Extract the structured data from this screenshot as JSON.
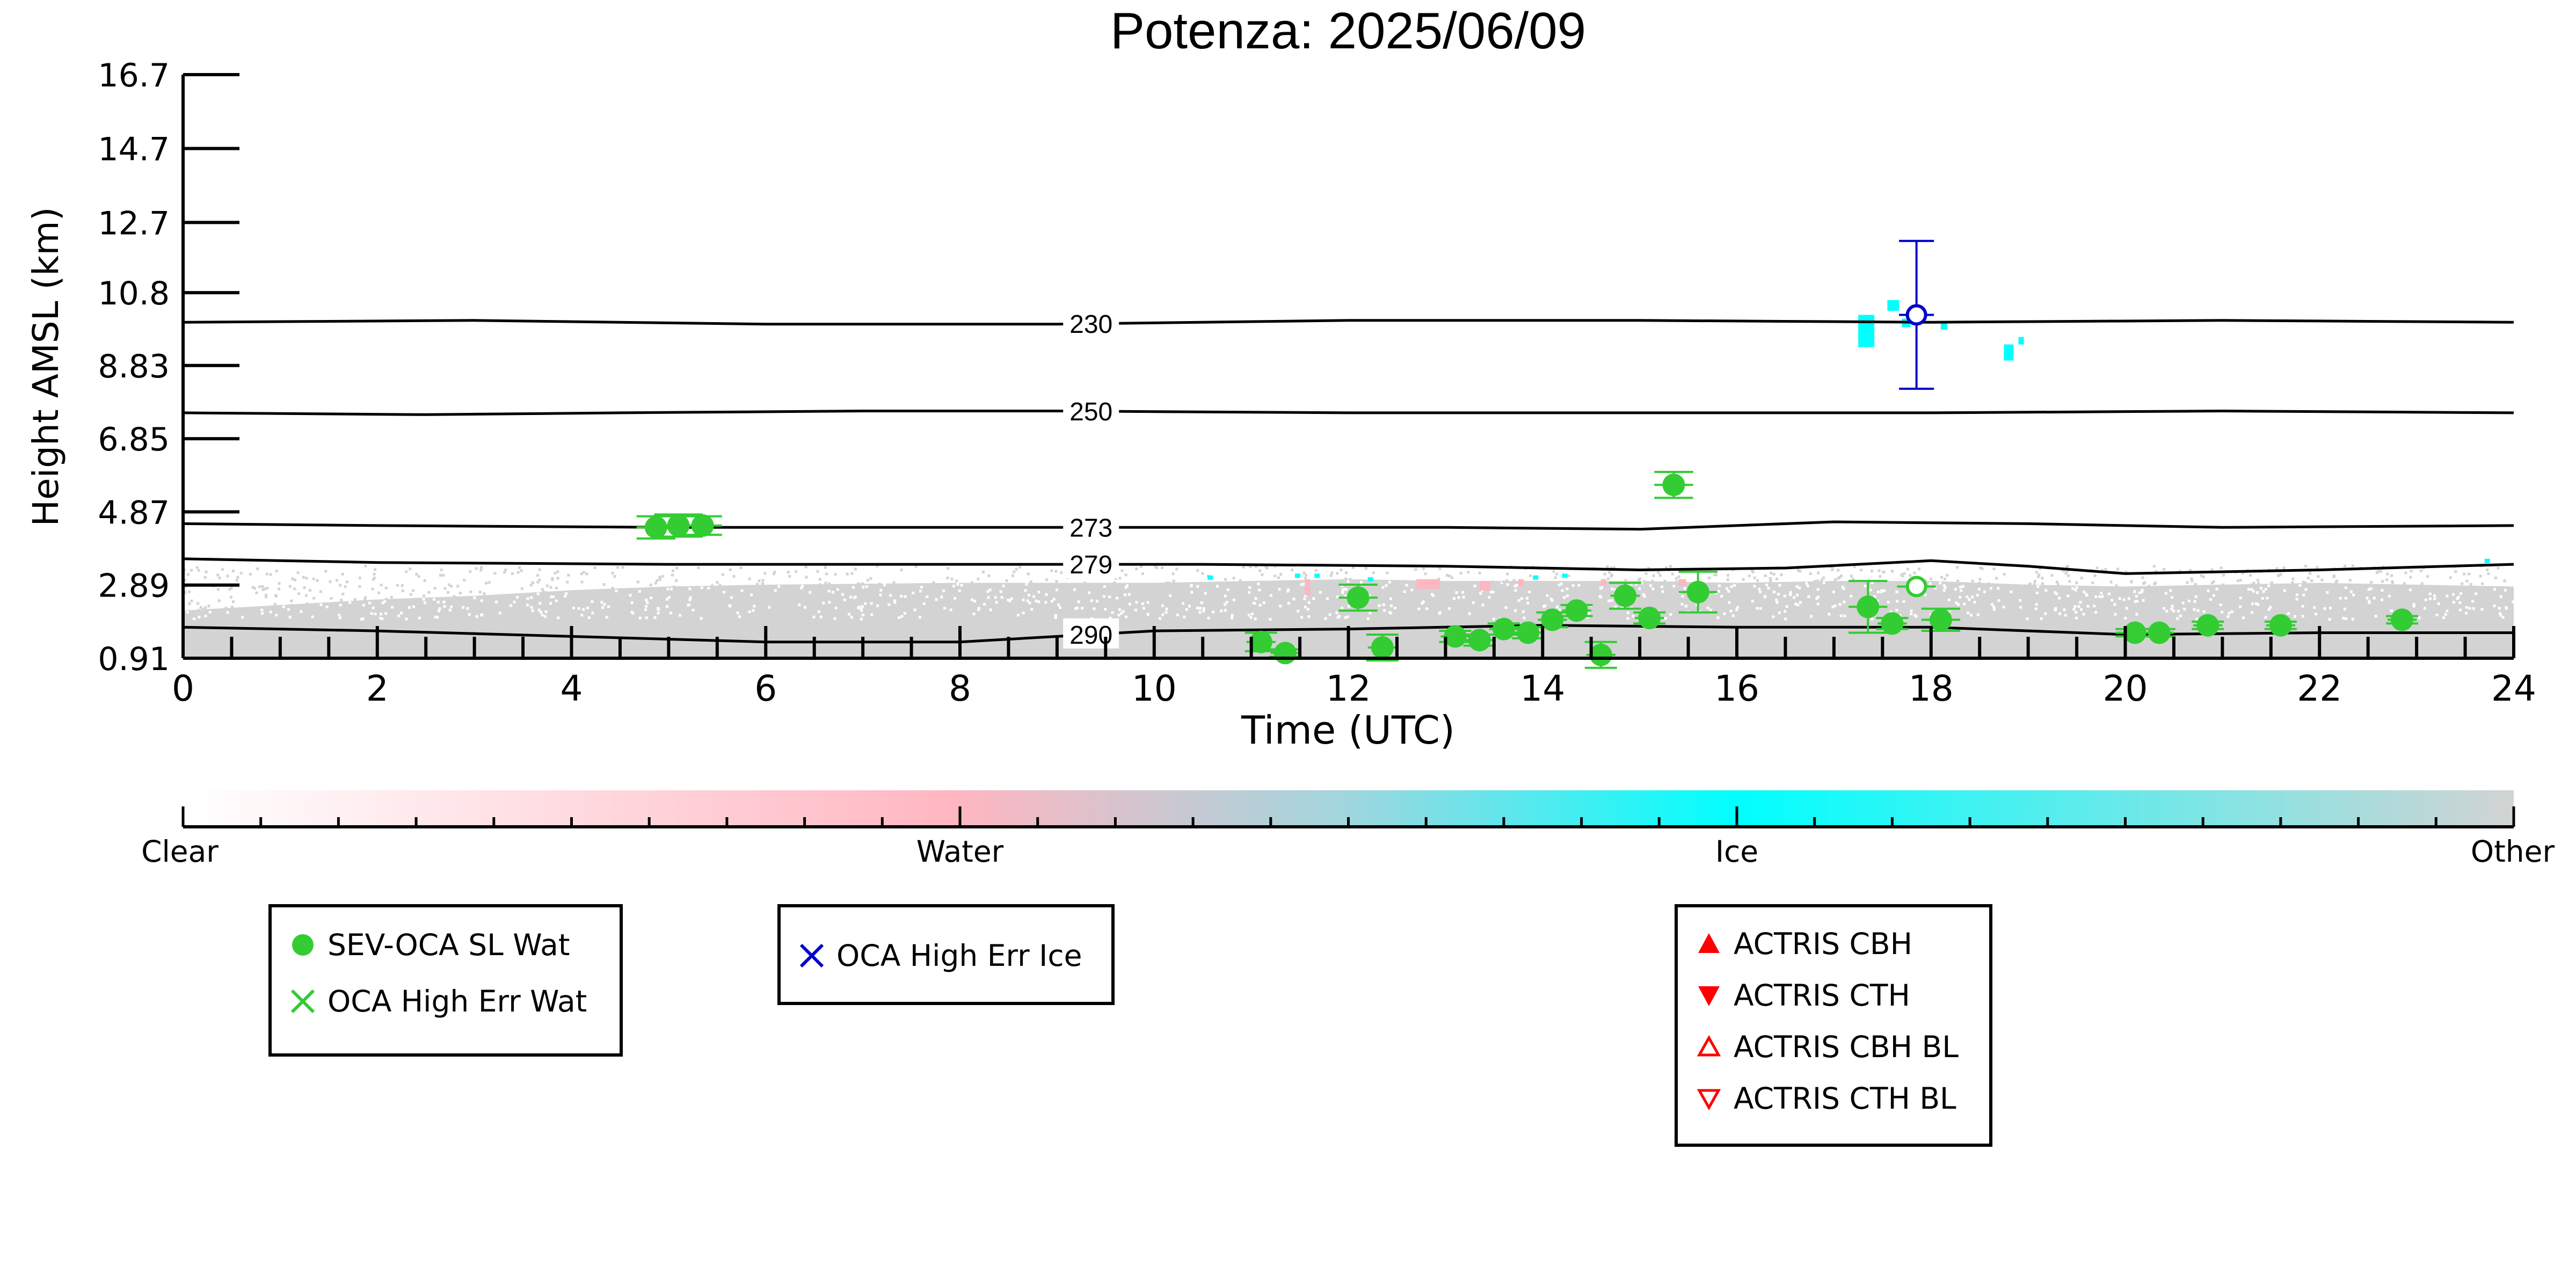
{
  "chart_data": {
    "type": "scatter",
    "title": "Potenza: 2025/06/09",
    "xlabel": "Time (UTC)",
    "ylabel": "Height AMSL (km)",
    "xlim": [
      0,
      24
    ],
    "ylim": [
      0.91,
      16.7
    ],
    "x_ticks": [
      "0",
      "2",
      "4",
      "6",
      "8",
      "10",
      "12",
      "14",
      "16",
      "18",
      "20",
      "22",
      "24"
    ],
    "y_ticks": [
      "0.91",
      "2.89",
      "4.87",
      "6.85",
      "8.83",
      "10.8",
      "12.7",
      "14.7",
      "16.7"
    ],
    "isotherms": [
      {
        "label": "230",
        "points": [
          [
            0,
            10.0
          ],
          [
            3,
            10.05
          ],
          [
            6,
            9.95
          ],
          [
            9,
            9.95
          ],
          [
            12,
            10.05
          ],
          [
            15,
            10.05
          ],
          [
            18,
            10.0
          ],
          [
            21,
            10.05
          ],
          [
            24,
            10.0
          ]
        ]
      },
      {
        "label": "250",
        "points": [
          [
            0,
            7.55
          ],
          [
            2.5,
            7.5
          ],
          [
            4.5,
            7.55
          ],
          [
            7,
            7.6
          ],
          [
            9,
            7.6
          ],
          [
            12,
            7.55
          ],
          [
            15,
            7.55
          ],
          [
            18,
            7.55
          ],
          [
            21,
            7.6
          ],
          [
            24,
            7.55
          ]
        ]
      },
      {
        "label": "273",
        "points": [
          [
            0,
            4.55
          ],
          [
            2,
            4.5
          ],
          [
            5,
            4.45
          ],
          [
            8,
            4.45
          ],
          [
            10.5,
            4.45
          ],
          [
            13,
            4.45
          ],
          [
            15,
            4.4
          ],
          [
            17,
            4.6
          ],
          [
            19,
            4.55
          ],
          [
            21,
            4.45
          ],
          [
            24,
            4.5
          ]
        ]
      },
      {
        "label": "279",
        "points": [
          [
            0,
            3.6
          ],
          [
            2,
            3.5
          ],
          [
            5,
            3.45
          ],
          [
            8,
            3.45
          ],
          [
            10.5,
            3.45
          ],
          [
            13,
            3.4
          ],
          [
            15,
            3.3
          ],
          [
            16.5,
            3.35
          ],
          [
            18,
            3.55
          ],
          [
            19,
            3.4
          ],
          [
            20,
            3.2
          ],
          [
            22,
            3.3
          ],
          [
            24,
            3.45
          ]
        ]
      },
      {
        "label": "290",
        "points": [
          [
            0,
            1.75
          ],
          [
            2,
            1.65
          ],
          [
            4,
            1.5
          ],
          [
            6,
            1.35
          ],
          [
            8,
            1.35
          ],
          [
            10,
            1.65
          ],
          [
            12,
            1.7
          ],
          [
            14,
            1.8
          ],
          [
            16,
            1.75
          ],
          [
            18,
            1.75
          ],
          [
            20,
            1.55
          ],
          [
            22,
            1.6
          ],
          [
            24,
            1.6
          ]
        ]
      }
    ],
    "series": [
      {
        "name": "SEV-OCA SL Wat",
        "marker": "filled-circle",
        "color": "#33cc33",
        "points": [
          {
            "x": 4.87,
            "y": 4.45,
            "xerr": 0.2,
            "yerr": 0.3
          },
          {
            "x": 5.1,
            "y": 4.5,
            "xerr": 0.25,
            "yerr": 0.3
          },
          {
            "x": 5.35,
            "y": 4.5,
            "xerr": 0.2,
            "yerr": 0.25
          },
          {
            "x": 11.1,
            "y": 1.35,
            "xerr": 0.15,
            "yerr": 0.25
          },
          {
            "x": 11.35,
            "y": 1.05,
            "xerr": 0.15,
            "yerr": 0.1
          },
          {
            "x": 12.1,
            "y": 2.55,
            "xerr": 0.2,
            "yerr": 0.35
          },
          {
            "x": 12.35,
            "y": 1.2,
            "xerr": 0.15,
            "yerr": 0.35
          },
          {
            "x": 13.1,
            "y": 1.5,
            "xerr": 0.15,
            "yerr": 0.15
          },
          {
            "x": 13.35,
            "y": 1.4,
            "xerr": 0.15,
            "yerr": 0.15
          },
          {
            "x": 13.6,
            "y": 1.7,
            "xerr": 0.15,
            "yerr": 0.15
          },
          {
            "x": 13.85,
            "y": 1.6,
            "xerr": 0.15,
            "yerr": 0.15
          },
          {
            "x": 14.1,
            "y": 1.95,
            "xerr": 0.15,
            "yerr": 0.2
          },
          {
            "x": 14.35,
            "y": 2.2,
            "xerr": 0.15,
            "yerr": 0.15
          },
          {
            "x": 14.6,
            "y": 1.0,
            "xerr": 0.15,
            "yerr": 0.35
          },
          {
            "x": 14.85,
            "y": 2.6,
            "xerr": 0.15,
            "yerr": 0.35
          },
          {
            "x": 15.1,
            "y": 2.0,
            "xerr": 0.15,
            "yerr": 0.15
          },
          {
            "x": 15.35,
            "y": 5.6,
            "xerr": 0.2,
            "yerr": 0.35
          },
          {
            "x": 15.6,
            "y": 2.7,
            "xerr": 0.2,
            "yerr": 0.55
          },
          {
            "x": 17.35,
            "y": 2.3,
            "xerr": 0.2,
            "yerr": 0.7
          },
          {
            "x": 17.6,
            "y": 1.85,
            "xerr": 0.15,
            "yerr": 0.15
          },
          {
            "x": 18.1,
            "y": 1.95,
            "xerr": 0.2,
            "yerr": 0.3
          },
          {
            "x": 20.1,
            "y": 1.6,
            "xerr": 0.2,
            "yerr": 0.1
          },
          {
            "x": 20.35,
            "y": 1.6,
            "xerr": 0.15,
            "yerr": 0.1
          },
          {
            "x": 20.85,
            "y": 1.8,
            "xerr": 0.15,
            "yerr": 0.1
          },
          {
            "x": 21.6,
            "y": 1.8,
            "xerr": 0.15,
            "yerr": 0.1
          },
          {
            "x": 22.85,
            "y": 1.95,
            "xerr": 0.15,
            "yerr": 0.1
          }
        ]
      },
      {
        "name": "SEV-OCA SL Wat (open)",
        "marker": "open-circle",
        "color": "#33cc33",
        "points": [
          {
            "x": 17.85,
            "y": 2.85,
            "xerr": 0.2,
            "yerr": 0.0
          }
        ]
      },
      {
        "name": "OCA High Err Ice",
        "marker": "open-circle",
        "color": "#0000cc",
        "points": [
          {
            "x": 17.85,
            "y": 10.2,
            "xerr": 0.18,
            "yerr": 2.0
          }
        ]
      }
    ]
  },
  "colorbar": {
    "labels": [
      "Clear",
      "Water",
      "Ice",
      "Other"
    ],
    "colors": {
      "clear": "#ffffff",
      "water": "#ffb6c1",
      "ice": "#00ffff",
      "other": "#d3d3d3"
    }
  },
  "legends": [
    {
      "items": [
        {
          "label": "SEV-OCA SL Wat",
          "symbol": "filled-circle",
          "color": "#33cc33"
        },
        {
          "label": "OCA High Err Wat",
          "symbol": "x",
          "color": "#33cc33"
        }
      ]
    },
    {
      "items": [
        {
          "label": "OCA High Err Ice",
          "symbol": "x",
          "color": "#0000cc"
        }
      ]
    },
    {
      "items": [
        {
          "label": "ACTRIS CBH",
          "symbol": "triangle-up-filled",
          "color": "#ff0000"
        },
        {
          "label": "ACTRIS CTH",
          "symbol": "triangle-down-filled",
          "color": "#ff0000"
        },
        {
          "label": "ACTRIS CBH BL",
          "symbol": "triangle-up-open",
          "color": "#ff0000"
        },
        {
          "label": "ACTRIS CTH BL",
          "symbol": "triangle-down-open",
          "color": "#ff0000"
        }
      ]
    }
  ]
}
